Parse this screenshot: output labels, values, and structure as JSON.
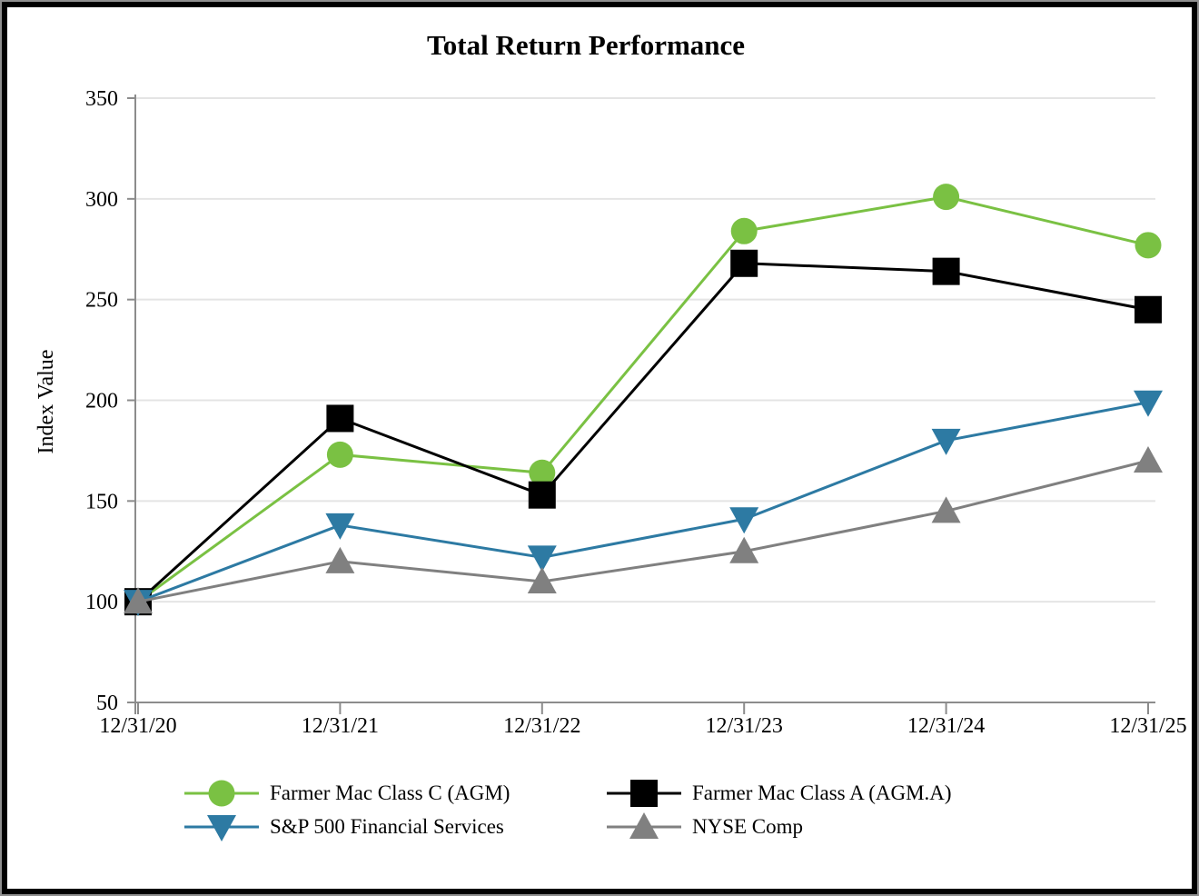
{
  "page": {
    "title": "Total Return Performance"
  },
  "colors": {
    "class_c_green": "#7ac143",
    "class_a_black": "#000000",
    "sp500_blue": "#2d7aa3",
    "nyse_gray": "#808080",
    "gridline": "#e4e4e4",
    "axis": "#8c8c8c",
    "frame_border": "#000000"
  },
  "chart_data": {
    "type": "line",
    "title": "Total Return Performance",
    "xlabel": "",
    "ylabel": "Index Value",
    "categories": [
      "12/31/20",
      "12/31/21",
      "12/31/22",
      "12/31/23",
      "12/31/24",
      "12/31/25"
    ],
    "ylim": [
      50,
      350
    ],
    "ytick_step": 50,
    "yticks": [
      50,
      100,
      150,
      200,
      250,
      300,
      350
    ],
    "grid": true,
    "legend_position": "bottom",
    "series": [
      {
        "name": "Farmer Mac Class C (AGM)",
        "marker": "circle",
        "color": "#7ac143",
        "values": [
          100,
          173,
          164,
          284,
          301,
          277
        ]
      },
      {
        "name": "Farmer Mac Class A (AGM.A)",
        "marker": "square",
        "color": "#000000",
        "values": [
          100,
          191,
          153,
          268,
          264,
          245
        ]
      },
      {
        "name": "S&P 500 Financial Services",
        "marker": "triangle-down",
        "color": "#2d7aa3",
        "values": [
          100,
          138,
          122,
          141,
          180,
          199
        ]
      },
      {
        "name": "NYSE Comp",
        "marker": "triangle-up",
        "color": "#808080",
        "values": [
          100,
          120,
          110,
          125,
          145,
          170
        ]
      }
    ]
  }
}
